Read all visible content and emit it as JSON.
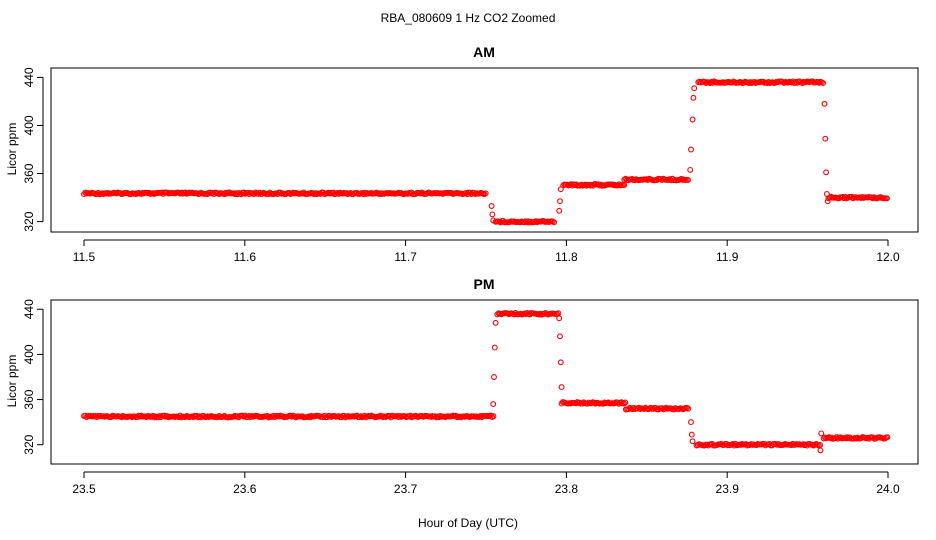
{
  "figure": {
    "title": "RBA_080609  1 Hz CO2 Zoomed",
    "xlabel": "Hour of Day (UTC)"
  },
  "chart_data": [
    {
      "type": "scatter",
      "title": "AM",
      "xlabel": "",
      "ylabel": "Licor ppm",
      "xlim": [
        11.5,
        12.0
      ],
      "ylim": [
        318,
        442
      ],
      "xticks": [
        "11.5",
        "11.6",
        "11.7",
        "11.8",
        "11.9",
        "12.0"
      ],
      "yticks": [
        "320",
        "360",
        "400",
        "440"
      ],
      "marker_color": "#ff0000",
      "series": [
        {
          "segments": [
            {
              "x": [
                11.5,
                11.75
              ],
              "y": 343.5
            },
            {
              "x": [
                11.756,
                11.793
              ],
              "y": 320
            },
            {
              "x": [
                11.798,
                11.836
              ],
              "y": 350.5
            },
            {
              "x": [
                11.836,
                11.876
              ],
              "y": 355
            },
            {
              "x": [
                11.882,
                11.96
              ],
              "y": 436
            },
            {
              "x": [
                11.963,
                12.0
              ],
              "y": 340
            }
          ],
          "transitions": [
            {
              "x": 11.7535,
              "y": 333
            },
            {
              "x": 11.754,
              "y": 326
            },
            {
              "x": 11.7545,
              "y": 321
            },
            {
              "x": 11.7955,
              "y": 329
            },
            {
              "x": 11.796,
              "y": 337
            },
            {
              "x": 11.7965,
              "y": 347
            },
            {
              "x": 11.877,
              "y": 363
            },
            {
              "x": 11.8775,
              "y": 380
            },
            {
              "x": 11.8785,
              "y": 405
            },
            {
              "x": 11.879,
              "y": 423
            },
            {
              "x": 11.8795,
              "y": 431
            },
            {
              "x": 11.9605,
              "y": 418
            },
            {
              "x": 11.961,
              "y": 389
            },
            {
              "x": 11.9615,
              "y": 361
            },
            {
              "x": 11.962,
              "y": 343
            },
            {
              "x": 11.9625,
              "y": 337
            }
          ]
        }
      ]
    },
    {
      "type": "scatter",
      "title": "PM",
      "xlabel": "",
      "ylabel": "Licor ppm",
      "xlim": [
        23.5,
        24.0
      ],
      "ylim": [
        310,
        442
      ],
      "xticks": [
        "23.5",
        "23.6",
        "23.7",
        "23.8",
        "23.9",
        "24.0"
      ],
      "yticks": [
        "320",
        "360",
        "400",
        "440"
      ],
      "marker_color": "#ff0000",
      "series": [
        {
          "segments": [
            {
              "x": [
                23.5,
                23.755
              ],
              "y": 345
            },
            {
              "x": [
                23.757,
                23.795
              ],
              "y": 436
            },
            {
              "x": [
                23.797,
                23.837
              ],
              "y": 357
            },
            {
              "x": [
                23.837,
                23.876
              ],
              "y": 352
            },
            {
              "x": [
                23.881,
                23.958
              ],
              "y": 320
            },
            {
              "x": [
                23.96,
                24.0
              ],
              "y": 326
            }
          ],
          "transitions": [
            {
              "x": 23.7545,
              "y": 356
            },
            {
              "x": 23.755,
              "y": 380
            },
            {
              "x": 23.7555,
              "y": 406
            },
            {
              "x": 23.756,
              "y": 428
            },
            {
              "x": 23.7955,
              "y": 432
            },
            {
              "x": 23.796,
              "y": 416
            },
            {
              "x": 23.7965,
              "y": 393
            },
            {
              "x": 23.797,
              "y": 371
            },
            {
              "x": 23.8775,
              "y": 340
            },
            {
              "x": 23.878,
              "y": 329
            },
            {
              "x": 23.8785,
              "y": 323
            },
            {
              "x": 23.958,
              "y": 315
            },
            {
              "x": 23.9585,
              "y": 330
            }
          ]
        }
      ]
    }
  ]
}
